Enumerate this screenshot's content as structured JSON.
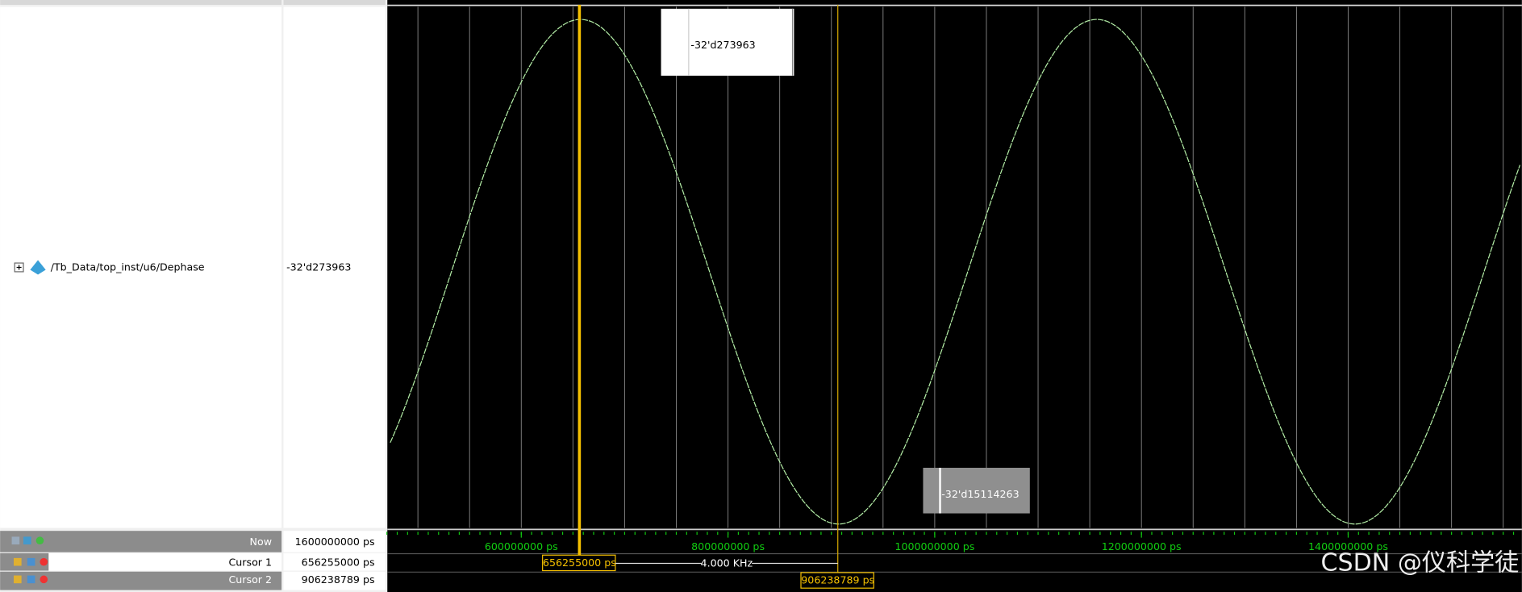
{
  "signals": [
    {
      "name": "/Tb_Data/top_inst/u6/Dephase",
      "value": "-32'd273963"
    }
  ],
  "now": {
    "name": "Now",
    "time": "1600000000 ps"
  },
  "cursors": [
    {
      "name": "Cursor 1",
      "time": {
        "value": 656255000,
        "label": "656255000 ps"
      }
    },
    {
      "name": "Cursor 2",
      "time": {
        "value": 906238789,
        "label": "906238789 ps"
      }
    }
  ],
  "cursor_delta": "4.000 KHz",
  "timeline_ticks": [
    {
      "value": 600000000,
      "label": "600000000 ps"
    },
    {
      "value": 800000000,
      "label": "800000000 ps"
    },
    {
      "value": 1000000000,
      "label": "1000000000 ps"
    },
    {
      "value": 1200000000,
      "label": "1200000000 ps"
    },
    {
      "value": 1400000000,
      "label": "1400000000 ps"
    }
  ],
  "tooltips": [
    "-32'd273963",
    "-32'd15114263"
  ],
  "watermark": "CSDN @仪科学徒"
}
